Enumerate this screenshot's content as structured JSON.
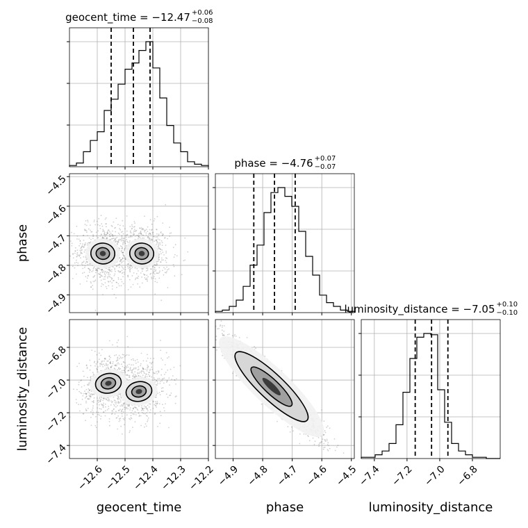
{
  "chart_data": {
    "type": "corner",
    "parameters": [
      "geocent_time",
      "phase",
      "luminosity_distance"
    ],
    "axis_labels": {
      "x": [
        "geocent_time",
        "phase",
        "luminosity_distance"
      ],
      "y": [
        "phase",
        "luminosity_distance"
      ]
    },
    "ranges": {
      "geocent_time": [
        -12.7,
        -12.2
      ],
      "phase": [
        -4.96,
        -4.49
      ],
      "luminosity_distance": [
        -7.48,
        -6.63
      ]
    },
    "ticks": {
      "geocent_time": [
        -12.6,
        -12.5,
        -12.4,
        -12.3,
        -12.2
      ],
      "phase": [
        -4.9,
        -4.8,
        -4.7,
        -4.6,
        -4.5
      ],
      "luminosity_distance": [
        -7.4,
        -7.2,
        -7.0,
        -6.8
      ]
    },
    "tick_labels": {
      "geocent_time": [
        "−12.6",
        "−12.5",
        "−12.4",
        "−12.3",
        "−12.2"
      ],
      "phase": [
        "−4.9",
        "−4.8",
        "−4.7",
        "−4.6",
        "−4.5"
      ],
      "luminosity_distance": [
        "−7.4",
        "−7.2",
        "−7.0",
        "−6.8"
      ]
    },
    "titles": [
      {
        "param": "geocent_time",
        "main": "geocent_time = −12.47",
        "sup": "+0.06",
        "sub": "−0.08"
      },
      {
        "param": "phase",
        "main": "phase = −4.76",
        "sup": "+0.07",
        "sub": "−0.07"
      },
      {
        "param": "luminosity_distance",
        "main": "luminosity_distance = −7.05",
        "sup": "+0.10",
        "sub": "−0.10"
      }
    ],
    "quantiles": {
      "geocent_time": [
        -12.55,
        -12.47,
        -12.41
      ],
      "phase": [
        -4.83,
        -4.76,
        -4.69
      ],
      "luminosity_distance": [
        -7.15,
        -7.05,
        -6.95
      ]
    },
    "histograms": {
      "geocent_time": {
        "bins": 20,
        "counts": [
          0.01,
          0.03,
          0.12,
          0.21,
          0.28,
          0.45,
          0.54,
          0.66,
          0.78,
          0.83,
          0.93,
          1.0,
          0.79,
          0.55,
          0.33,
          0.19,
          0.12,
          0.04,
          0.02,
          0.01
        ]
      },
      "phase": {
        "bins": 20,
        "counts": [
          0.01,
          0.02,
          0.05,
          0.1,
          0.21,
          0.38,
          0.54,
          0.8,
          0.96,
          1.0,
          0.93,
          0.85,
          0.65,
          0.45,
          0.3,
          0.14,
          0.08,
          0.05,
          0.02,
          0.01
        ]
      },
      "luminosity_distance": {
        "bins": 20,
        "counts": [
          0.01,
          0.01,
          0.03,
          0.06,
          0.12,
          0.27,
          0.53,
          0.8,
          0.97,
          1.0,
          0.99,
          0.55,
          0.29,
          0.12,
          0.06,
          0.03,
          0.01,
          0.01,
          0.0,
          0.0
        ]
      }
    },
    "joint": {
      "phase_vs_geocent_time": {
        "modes": [
          {
            "x": -12.58,
            "y": -4.76
          },
          {
            "x": -12.44,
            "y": -4.76
          }
        ],
        "correlation": -0.1
      },
      "luminosity_distance_vs_geocent_time": {
        "modes": [
          {
            "x": -12.56,
            "y": -7.02
          },
          {
            "x": -12.45,
            "y": -7.07
          }
        ],
        "correlation": 0.2
      },
      "luminosity_distance_vs_phase": {
        "modes": [
          {
            "x": -4.77,
            "y": -7.04
          }
        ],
        "correlation": -0.95
      }
    },
    "grid": true
  }
}
